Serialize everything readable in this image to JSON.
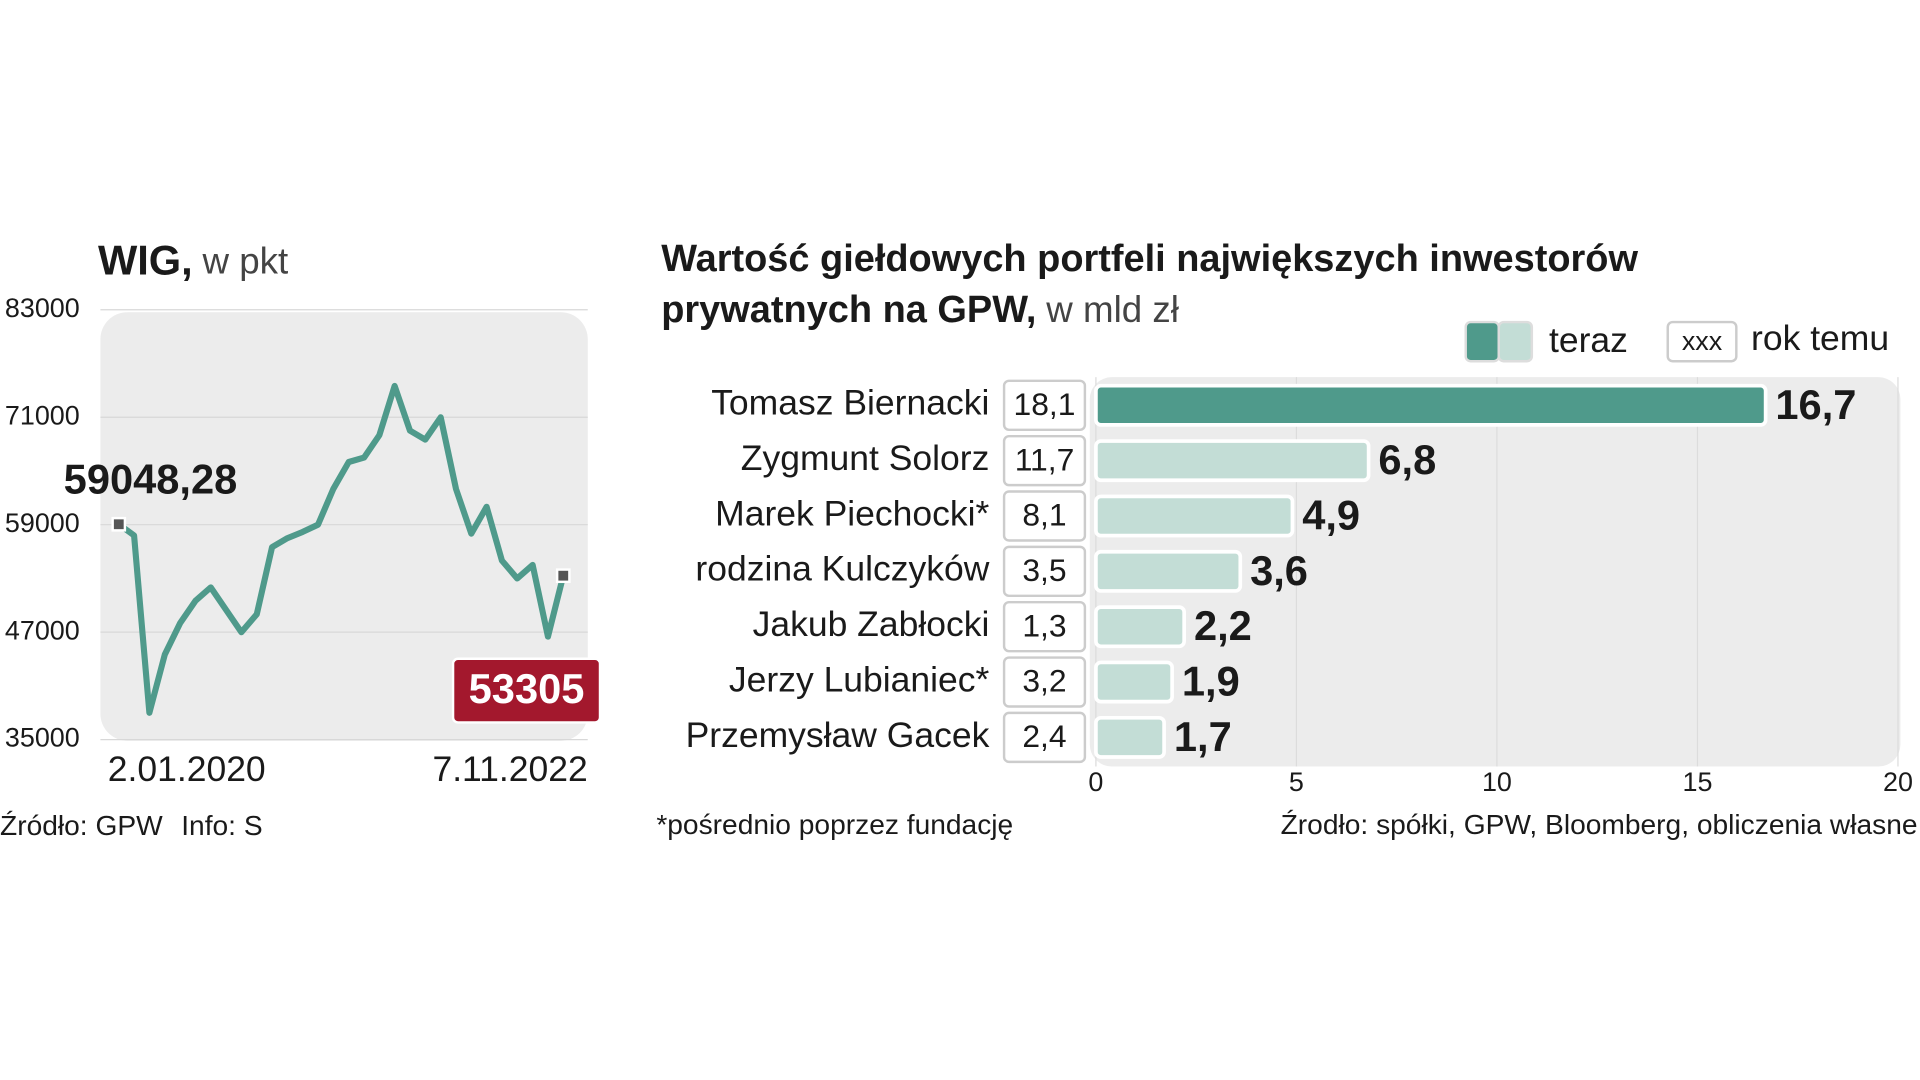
{
  "chart_data": [
    {
      "type": "line",
      "title": "WIG,",
      "unit": "w pkt",
      "categories": [
        "2.01.2020",
        null,
        null,
        null,
        null,
        null,
        null,
        null,
        null,
        null,
        null,
        null,
        null,
        null,
        null,
        null,
        null,
        null,
        null,
        null,
        null,
        null,
        null,
        null,
        null,
        null,
        null,
        null,
        null,
        "7.11.2022"
      ],
      "values": [
        59048.28,
        57800,
        38000,
        44500,
        48000,
        50500,
        52000,
        49500,
        47000,
        49000,
        56500,
        57500,
        58200,
        59000,
        63000,
        66000,
        66500,
        69000,
        74500,
        69500,
        68500,
        71000,
        63000,
        58000,
        61000,
        55000,
        53000,
        54500,
        46500,
        53305
      ],
      "color": "#4f9a8b",
      "end_color": "#a3182d",
      "start_label": "59048,28",
      "end_label": "53305",
      "ylim": [
        35000,
        83000
      ],
      "yticks": [
        35000,
        47000,
        59000,
        71000,
        83000
      ],
      "grid": true,
      "source": "Źródło: GPW",
      "info": "Info: S"
    },
    {
      "type": "bar",
      "orientation": "horizontal",
      "title": [
        "Wartość giełdowych portfeli największych inwestorów",
        "prywatnych na GPW,"
      ],
      "unit": "w mld zł",
      "categories": [
        "Tomasz Biernacki",
        "Zygmunt Solorz",
        "Marek Piechocki*",
        "rodzina Kulczyków",
        "Jakub Zabłocki",
        "Jerzy Lubianiec*",
        "Przemysław Gacek"
      ],
      "series": [
        {
          "name": "teraz",
          "color": "#c3ddd6",
          "highlight_color": "#4f9a8b",
          "values": [
            16.7,
            6.8,
            4.9,
            3.6,
            2.2,
            1.9,
            1.7
          ],
          "value_labels": [
            "16,7",
            "6,8",
            "4,9",
            "3,6",
            "2,2",
            "1,9",
            "1,7"
          ]
        },
        {
          "name": "rok temu",
          "marker": "xxx",
          "values": [
            18.1,
            11.7,
            8.1,
            3.5,
            1.3,
            3.2,
            2.4
          ],
          "value_labels": [
            "18,1",
            "11,7",
            "8,1",
            "3,5",
            "1,3",
            "3,2",
            "2,4"
          ]
        }
      ],
      "xlim": [
        0,
        20
      ],
      "xticks": [
        0,
        5,
        10,
        15,
        20
      ],
      "grid": true,
      "note": "*pośrednio poprzez fundację",
      "source": "Źrodło: spółki, GPW, Bloomberg, obliczenia własne"
    }
  ]
}
